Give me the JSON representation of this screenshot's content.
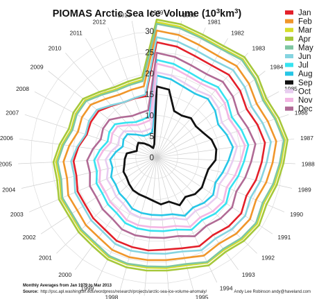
{
  "chart_data": {
    "type": "radar",
    "title_prefix": "PIOMAS Arctic Sea Ice Volume (10",
    "title_sup": "3",
    "title_suffix": "km",
    "title_sup2": "3",
    "title_close": ")",
    "radial_ticks": [
      0,
      5,
      10,
      15,
      20,
      25,
      30
    ],
    "radial_max": 33,
    "years": [
      "1979",
      "1980",
      "1981",
      "1982",
      "1983",
      "1984",
      "1985",
      "1986",
      "1987",
      "1988",
      "1989",
      "1990",
      "1991",
      "1992",
      "1993",
      "1994",
      "1995",
      "1996",
      "1997",
      "1998",
      "1999",
      "2000",
      "2001",
      "2002",
      "2003",
      "2004",
      "2005",
      "2006",
      "2007",
      "2008",
      "2009",
      "2010",
      "2011",
      "2012",
      "2013"
    ],
    "grid": true,
    "legend_placement": "top-right",
    "series": [
      {
        "name": "Jan",
        "color": "#e3202a",
        "values": [
          27.4,
          26.8,
          25.8,
          25.5,
          26.1,
          25.4,
          24.3,
          25.2,
          26.0,
          25.0,
          24.2,
          23.2,
          24.1,
          23.7,
          22.8,
          23.4,
          22.4,
          22.0,
          22.2,
          22.1,
          22.0,
          21.1,
          20.9,
          20.4,
          20.5,
          19.6,
          19.8,
          18.8,
          17.5,
          17.8,
          17.7,
          16.3,
          15.3,
          15.0,
          14.8
        ]
      },
      {
        "name": "Feb",
        "color": "#f0962a",
        "values": [
          30.2,
          29.6,
          28.6,
          28.2,
          28.9,
          28.1,
          27.0,
          27.8,
          28.7,
          27.6,
          26.7,
          25.7,
          26.6,
          26.2,
          25.3,
          25.9,
          24.8,
          24.5,
          24.5,
          24.6,
          24.4,
          23.5,
          23.3,
          22.7,
          22.9,
          21.9,
          22.2,
          21.0,
          19.7,
          20.2,
          20.1,
          18.5,
          17.4,
          17.2,
          17.2
        ]
      },
      {
        "name": "Mar",
        "color": "#d6dd2a",
        "values": [
          32.2,
          31.6,
          30.6,
          30.3,
          31.1,
          30.1,
          29.0,
          29.8,
          30.8,
          29.6,
          28.7,
          27.7,
          28.6,
          28.1,
          27.2,
          27.8,
          26.6,
          26.4,
          26.3,
          26.4,
          26.3,
          25.3,
          25.1,
          24.5,
          24.7,
          23.7,
          24.0,
          22.7,
          21.4,
          21.9,
          21.8,
          20.1,
          18.9,
          18.7,
          18.8
        ]
      },
      {
        "name": "Apr",
        "color": "#a6c83a",
        "values": [
          32.8,
          32.2,
          31.2,
          30.9,
          31.7,
          30.8,
          29.6,
          30.5,
          31.4,
          30.2,
          29.3,
          28.4,
          29.2,
          28.7,
          27.8,
          28.5,
          27.3,
          27.0,
          27.0,
          27.1,
          26.9,
          26.0,
          25.7,
          25.1,
          25.3,
          24.3,
          24.6,
          23.3,
          22.0,
          22.5,
          22.4,
          20.7,
          19.5,
          19.3,
          19.4
        ]
      },
      {
        "name": "May",
        "color": "#7ec6a2",
        "values": [
          31.8,
          31.2,
          30.3,
          30.0,
          30.8,
          29.9,
          28.7,
          29.6,
          30.5,
          29.3,
          28.4,
          27.4,
          28.3,
          27.8,
          26.9,
          27.6,
          26.3,
          26.1,
          26.0,
          26.2,
          26.0,
          25.0,
          24.8,
          24.2,
          24.4,
          23.3,
          23.6,
          22.4,
          21.1,
          21.6,
          21.5,
          19.8,
          18.6,
          18.4,
          18.5
        ]
      },
      {
        "name": "Jun",
        "color": "#85d4e0",
        "values": [
          28.6,
          28.0,
          27.1,
          26.8,
          27.6,
          26.8,
          25.6,
          26.5,
          27.4,
          26.2,
          25.3,
          24.3,
          25.2,
          24.7,
          23.8,
          24.5,
          23.2,
          23.0,
          22.9,
          23.0,
          22.8,
          21.8,
          21.6,
          21.0,
          21.1,
          20.1,
          20.4,
          19.1,
          17.8,
          18.3,
          18.2,
          16.5,
          15.3,
          15.1,
          15.2
        ]
      },
      {
        "name": "Jul",
        "color": "#36e3f0",
        "values": [
          23.2,
          22.6,
          21.7,
          21.4,
          22.2,
          21.5,
          20.3,
          21.2,
          22.0,
          20.8,
          19.9,
          18.9,
          19.8,
          19.3,
          18.4,
          19.1,
          17.8,
          17.6,
          17.5,
          17.5,
          17.3,
          16.3,
          16.1,
          15.5,
          15.6,
          14.6,
          14.9,
          13.6,
          12.3,
          12.8,
          12.7,
          11.0,
          9.8,
          9.6,
          9.9
        ]
      },
      {
        "name": "Aug",
        "color": "#27c6e6",
        "values": [
          19.5,
          18.9,
          18.0,
          17.7,
          18.5,
          17.8,
          16.6,
          17.5,
          18.3,
          17.1,
          16.1,
          15.2,
          16.1,
          15.6,
          14.7,
          15.4,
          14.0,
          13.8,
          13.7,
          13.7,
          13.5,
          12.5,
          12.3,
          11.7,
          11.8,
          10.8,
          11.1,
          9.8,
          8.5,
          9.0,
          8.9,
          7.2,
          6.0,
          5.8,
          6.1
        ]
      },
      {
        "name": "Sep",
        "color": "#111111",
        "values": [
          16.9,
          16.4,
          11.8,
          11.6,
          12.4,
          11.9,
          12.5,
          13.7,
          14.3,
          14.0,
          12.6,
          12.5,
          12.9,
          12.6,
          11.6,
          12.6,
          10.9,
          11.2,
          10.3,
          9.8,
          9.7,
          9.6,
          9.1,
          8.6,
          8.6,
          7.9,
          7.6,
          7.2,
          5.0,
          5.3,
          5.6,
          4.4,
          3.3,
          2.4,
          3.2
        ]
      },
      {
        "name": "Oct",
        "color": "#e8cdf0",
        "values": [
          20.3,
          19.8,
          18.9,
          18.6,
          19.4,
          18.8,
          17.6,
          18.4,
          19.3,
          18.1,
          17.2,
          16.2,
          17.1,
          16.6,
          15.7,
          16.4,
          15.0,
          14.8,
          14.7,
          14.8,
          14.6,
          13.6,
          13.4,
          12.8,
          12.9,
          11.9,
          12.2,
          10.9,
          9.6,
          10.1,
          10.0,
          8.3,
          7.1,
          6.9,
          7.1
        ]
      },
      {
        "name": "Nov",
        "color": "#f3b6e3",
        "values": [
          22.3,
          21.7,
          20.8,
          20.5,
          21.3,
          20.7,
          19.5,
          20.3,
          21.2,
          20.0,
          19.1,
          18.1,
          19.0,
          18.5,
          17.6,
          18.3,
          16.9,
          16.7,
          16.6,
          16.7,
          16.5,
          15.5,
          15.3,
          14.7,
          14.8,
          13.8,
          14.1,
          12.8,
          11.5,
          12.0,
          11.9,
          10.2,
          9.0,
          8.8,
          9.0
        ]
      },
      {
        "name": "Dec",
        "color": "#b06a95",
        "values": [
          24.9,
          24.3,
          23.4,
          23.1,
          23.9,
          23.2,
          22.0,
          22.8,
          23.7,
          22.5,
          21.6,
          20.6,
          21.5,
          21.0,
          20.1,
          20.8,
          19.4,
          19.2,
          19.1,
          19.2,
          19.0,
          18.0,
          17.8,
          17.2,
          17.3,
          16.3,
          16.6,
          15.3,
          14.0,
          14.5,
          14.4,
          12.7,
          11.5,
          11.3,
          11.4
        ]
      }
    ],
    "note_line1": "Monthly Averages from Jan 1979 to Mar 2013",
    "source_label": "Source:",
    "source_text": "http://psc.apl.washington.edu/wordpress/research/projects/arctic-sea-ice-volume-anomaly/",
    "credit": "Andy Lee Robinson andy@haveland.com"
  }
}
